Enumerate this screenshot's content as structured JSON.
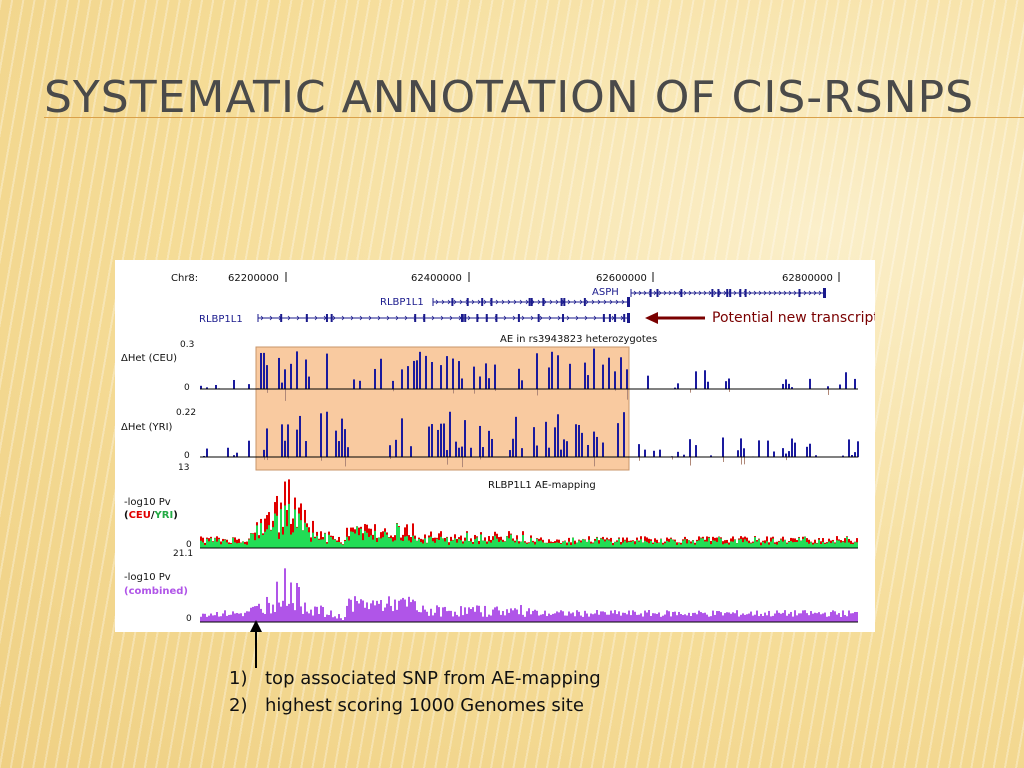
{
  "slide": {
    "title": "Systematic annotation of cis-rSNPs",
    "notes": [
      {
        "num": "1)",
        "text": "top associated SNP from AE-mapping"
      },
      {
        "num": "2)",
        "text": "highest scoring 1000 Genomes site"
      }
    ]
  },
  "colors": {
    "gene": "#1a1a8c",
    "het_positive": "#1a1a9e",
    "het_negative": "#b08878",
    "highlight_fill": "#f9caa0",
    "highlight_stroke": "#c8956a",
    "ceu": "#e00000",
    "yri": "#22dd55",
    "combined": "#b055e8",
    "annotation_arrow": "#7a0000"
  },
  "chart_data": {
    "type": "genome-track",
    "chromosome_label": "Chr8:",
    "x_ticks": [
      "62200000",
      "62400000",
      "62600000",
      "62800000"
    ],
    "genes": [
      {
        "name": "RLBP1L1",
        "strand": "+",
        "row": 2
      },
      {
        "name": "RLBP1L1",
        "strand": "+",
        "row": 1
      },
      {
        "name": "ASPH",
        "strand": "+",
        "row": 0
      }
    ],
    "annotation": "Potential new transcript",
    "highlight_label": "AE in rs3943823 heterozygotes",
    "tracks": [
      {
        "id": "het_ceu",
        "label": "ΔHet (CEU)",
        "ymax_label": "0.3",
        "ymin_label": "0",
        "ymax": 0.3
      },
      {
        "id": "het_yri",
        "label": "ΔHet (YRI)",
        "ymax_label": "0.22",
        "ymin_label": "0",
        "ymax": 0.22
      },
      {
        "id": "pv_pop",
        "label": "-log10 Pv",
        "legend_prefix": "(",
        "legend_ceu": "CEU",
        "legend_sep": "/",
        "legend_yri": "YRI",
        "legend_suffix": ")",
        "title": "RLBP1L1 AE-mapping",
        "ymax_label": "13",
        "ymin_label": "0",
        "ymax": 13
      },
      {
        "id": "pv_comb",
        "label": "-log10 Pv",
        "legend": "(combined)",
        "ymax_label": "21.1",
        "ymin_label": "0",
        "ymax": 21.1
      }
    ]
  }
}
